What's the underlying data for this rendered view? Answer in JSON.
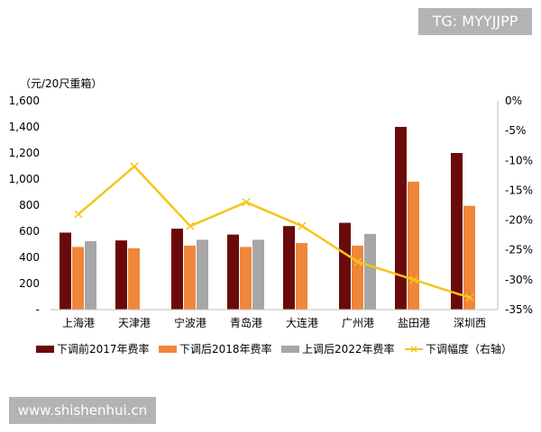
{
  "watermarks": {
    "top_right": "TG: MYYJJPP",
    "bottom_left": "www.shishenhui.cn"
  },
  "chart_data": {
    "type": "bar",
    "unit_label": "（元/20尺重箱）",
    "categories": [
      "上海港",
      "天津港",
      "宁波港",
      "青岛港",
      "大连港",
      "广州港",
      "盐田港",
      "深圳西"
    ],
    "series": [
      {
        "name": "下调前2017年费率",
        "type": "bar",
        "axis": "left",
        "color": "#6b0a0a",
        "values": [
          590,
          530,
          620,
          575,
          640,
          665,
          1400,
          1200
        ]
      },
      {
        "name": "下调后2018年费率",
        "type": "bar",
        "axis": "left",
        "color": "#f0863a",
        "values": [
          480,
          470,
          490,
          480,
          510,
          490,
          980,
          795
        ]
      },
      {
        "name": "上调后2022年费率",
        "type": "bar",
        "axis": "left",
        "color": "#a6a6a6",
        "values": [
          525,
          null,
          535,
          535,
          null,
          580,
          null,
          null
        ]
      },
      {
        "name": "下调幅度（右轴）",
        "type": "line",
        "axis": "right",
        "color": "#f5c518",
        "values": [
          -19,
          -11,
          -21,
          -17,
          -21,
          -27,
          -30,
          -33
        ]
      }
    ],
    "left_axis": {
      "min": 0,
      "max": 1600,
      "step": 200,
      "tick_labels": [
        "-",
        "200",
        "400",
        "600",
        "800",
        "1,000",
        "1,200",
        "1,400",
        "1,600"
      ]
    },
    "right_axis": {
      "min": -35,
      "max": 0,
      "step": 5,
      "tick_labels": [
        "-35%",
        "-30%",
        "-25%",
        "-20%",
        "-15%",
        "-10%",
        "-5%",
        "0%"
      ]
    },
    "grid": false,
    "legend_position": "bottom"
  }
}
